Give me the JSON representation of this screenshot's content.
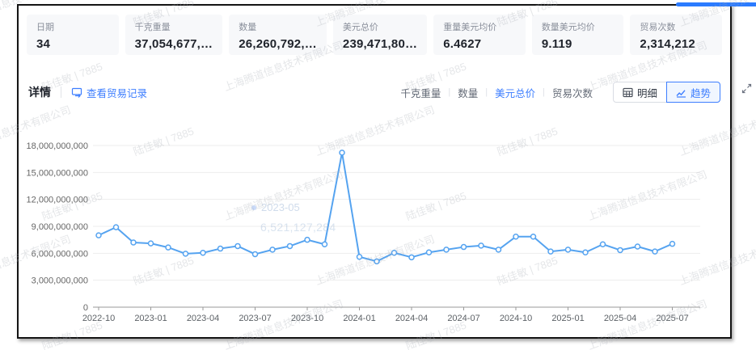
{
  "colors": {
    "accent": "#3d7eff",
    "line": "#55a3f0",
    "panel_border": "#141414",
    "card_bg": "#f7f8fa",
    "grid": "#ededed",
    "axis": "#999999",
    "top_accent_bar": "#2b7bff"
  },
  "summary_cards": [
    {
      "label": "日期",
      "value": "34"
    },
    {
      "label": "千克重量",
      "value": "37,054,677,…"
    },
    {
      "label": "数量",
      "value": "26,260,792,…"
    },
    {
      "label": "美元总价",
      "value": "239,471,80…"
    },
    {
      "label": "重量美元均价",
      "value": "6.4627"
    },
    {
      "label": "数量美元均价",
      "value": "9.119"
    },
    {
      "label": "贸易次数",
      "value": "2,314,212"
    }
  ],
  "detail_bar": {
    "title": "详情",
    "view_records_label": "查看贸易记录",
    "separator": "|",
    "metric_tabs": [
      {
        "label": "千克重量",
        "active": false
      },
      {
        "label": "数量",
        "active": false
      },
      {
        "label": "美元总价",
        "active": true
      },
      {
        "label": "贸易次数",
        "active": false
      }
    ],
    "view_toggle": [
      {
        "label": "明细",
        "icon": "table-icon",
        "active": false
      },
      {
        "label": "趋势",
        "icon": "trend-icon",
        "active": true
      }
    ]
  },
  "ghost_tooltip": {
    "date": "2023-05",
    "value": "6,521,127,284"
  },
  "watermark": {
    "company": "上海腾道信息技术有限公司",
    "user": "陆佳敏 | 7885"
  },
  "chart_data": {
    "type": "line",
    "title": "",
    "xlabel": "",
    "ylabel": "",
    "x": [
      "2022-10",
      "2022-11",
      "2022-12",
      "2023-01",
      "2023-02",
      "2023-03",
      "2023-04",
      "2023-05",
      "2023-06",
      "2023-07",
      "2023-08",
      "2023-09",
      "2023-10",
      "2023-11",
      "2023-12",
      "2024-01",
      "2024-02",
      "2024-03",
      "2024-04",
      "2024-05",
      "2024-06",
      "2024-07",
      "2024-08",
      "2024-09",
      "2024-10",
      "2024-11",
      "2024-12",
      "2025-01",
      "2025-02",
      "2025-03",
      "2025-04",
      "2025-05",
      "2025-06",
      "2025-07"
    ],
    "values": [
      8000000000,
      8900000000,
      7200000000,
      7100000000,
      6650000000,
      5950000000,
      6050000000,
      6521127284,
      6800000000,
      5900000000,
      6400000000,
      6800000000,
      7500000000,
      7000000000,
      17200000000,
      5600000000,
      5100000000,
      6050000000,
      5550000000,
      6100000000,
      6400000000,
      6700000000,
      6850000000,
      6400000000,
      7850000000,
      7850000000,
      6200000000,
      6400000000,
      6100000000,
      7000000000,
      6350000000,
      6750000000,
      6200000000,
      7050000000
    ],
    "ylim": [
      0,
      18000000000
    ],
    "y_ticks": [
      0,
      3000000000,
      6000000000,
      9000000000,
      12000000000,
      15000000000,
      18000000000
    ],
    "x_label_every": 3,
    "grid": true,
    "legend": "none",
    "line_color": "#55a3f0",
    "marker": "hollow-circle"
  }
}
